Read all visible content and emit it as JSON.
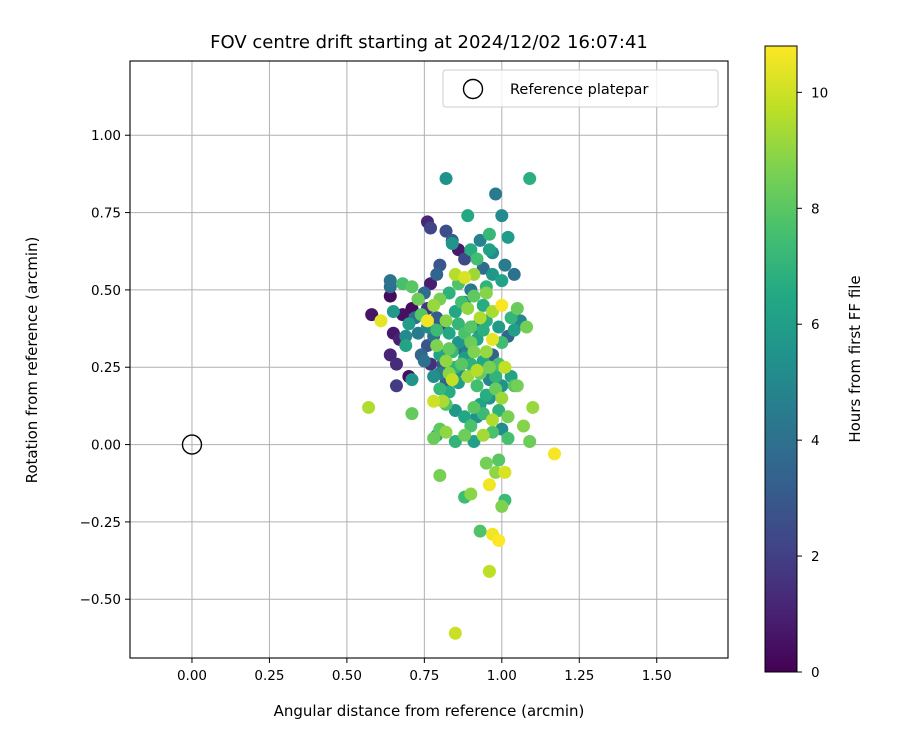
{
  "chart_data": {
    "type": "scatter",
    "title": "FOV centre drift starting at 2024/12/02 16:07:41",
    "xlabel": "Angular distance from reference (arcmin)",
    "ylabel": "Rotation from reference (arcmin)",
    "xlim": [
      -0.2,
      1.73
    ],
    "ylim": [
      -0.69,
      1.24
    ],
    "xticks": [
      0.0,
      0.25,
      0.5,
      0.75,
      1.0,
      1.25,
      1.5
    ],
    "xtick_labels": [
      "0.00",
      "0.25",
      "0.50",
      "0.75",
      "1.00",
      "1.25",
      "1.50"
    ],
    "yticks": [
      -0.5,
      -0.25,
      0.0,
      0.25,
      0.5,
      0.75,
      1.0
    ],
    "ytick_labels": [
      "−0.50",
      "−0.25",
      "0.00",
      "0.25",
      "0.50",
      "0.75",
      "1.00"
    ],
    "grid": true,
    "legend": {
      "placement": "top-right",
      "entries": [
        {
          "label": "Reference platepar",
          "marker": "open-circle"
        }
      ]
    },
    "reference_point": {
      "x": 0.0,
      "y": 0.0
    },
    "colorbar": {
      "label": "Hours from first FF file",
      "range": [
        0,
        10.8
      ],
      "ticks": [
        0,
        2,
        4,
        6,
        8,
        10
      ],
      "tick_labels": [
        "0",
        "2",
        "4",
        "6",
        "8",
        "10"
      ],
      "colormap": "viridis"
    },
    "points": [
      [
        0.64,
        0.48,
        0.3
      ],
      [
        0.58,
        0.42,
        0.6
      ],
      [
        0.65,
        0.36,
        0.7
      ],
      [
        0.67,
        0.34,
        1.0
      ],
      [
        0.64,
        0.29,
        1.1
      ],
      [
        0.66,
        0.26,
        1.4
      ],
      [
        0.7,
        0.22,
        0.4
      ],
      [
        0.66,
        0.19,
        1.9
      ],
      [
        0.68,
        0.42,
        0.5
      ],
      [
        0.71,
        0.44,
        0.3
      ],
      [
        0.76,
        0.72,
        1.2
      ],
      [
        0.77,
        0.7,
        2.2
      ],
      [
        0.82,
        0.69,
        2.6
      ],
      [
        0.84,
        0.66,
        3.2
      ],
      [
        0.86,
        0.63,
        0.8
      ],
      [
        0.88,
        0.6,
        2.4
      ],
      [
        0.8,
        0.58,
        2.9
      ],
      [
        0.79,
        0.55,
        3.5
      ],
      [
        0.77,
        0.52,
        0.9
      ],
      [
        0.75,
        0.49,
        3.8
      ],
      [
        0.73,
        0.47,
        2.5
      ],
      [
        0.76,
        0.44,
        1.7
      ],
      [
        0.79,
        0.41,
        3.1
      ],
      [
        0.81,
        0.38,
        2.0
      ],
      [
        0.78,
        0.35,
        4.2
      ],
      [
        0.76,
        0.32,
        2.8
      ],
      [
        0.74,
        0.29,
        3.6
      ],
      [
        0.77,
        0.26,
        1.5
      ],
      [
        0.8,
        0.23,
        4.6
      ],
      [
        0.82,
        0.2,
        3.3
      ],
      [
        0.64,
        0.53,
        4.1
      ],
      [
        0.64,
        0.51,
        3.9
      ],
      [
        0.65,
        0.43,
        5.8
      ],
      [
        0.69,
        0.35,
        5.1
      ],
      [
        0.69,
        0.32,
        6.3
      ],
      [
        0.71,
        0.21,
        5.5
      ],
      [
        0.68,
        0.52,
        7.6
      ],
      [
        0.71,
        0.51,
        8.0
      ],
      [
        0.73,
        0.47,
        8.4
      ],
      [
        0.74,
        0.42,
        7.9
      ],
      [
        0.98,
        0.81,
        4.4
      ],
      [
        1.0,
        0.74,
        5.1
      ],
      [
        0.89,
        0.74,
        6.5
      ],
      [
        0.82,
        0.86,
        5.4
      ],
      [
        1.09,
        0.86,
        6.8
      ],
      [
        1.02,
        0.67,
        5.9
      ],
      [
        0.96,
        0.68,
        7.2
      ],
      [
        0.93,
        0.66,
        4.8
      ],
      [
        0.96,
        0.63,
        6.1
      ],
      [
        0.97,
        0.62,
        5.2
      ],
      [
        0.9,
        0.63,
        6.7
      ],
      [
        0.84,
        0.65,
        5.6
      ],
      [
        0.92,
        0.6,
        7.5
      ],
      [
        0.94,
        0.57,
        3.7
      ],
      [
        0.97,
        0.55,
        5.7
      ],
      [
        1.01,
        0.58,
        4.5
      ],
      [
        1.04,
        0.55,
        4.0
      ],
      [
        1.0,
        0.53,
        6.2
      ],
      [
        0.95,
        0.51,
        7.0
      ],
      [
        0.9,
        0.5,
        4.3
      ],
      [
        0.88,
        0.54,
        10.2
      ],
      [
        0.85,
        0.55,
        9.6
      ],
      [
        0.86,
        0.52,
        7.8
      ],
      [
        0.83,
        0.49,
        6.9
      ],
      [
        0.8,
        0.47,
        8.6
      ],
      [
        0.78,
        0.45,
        9.1
      ],
      [
        0.76,
        0.4,
        10.6
      ],
      [
        0.79,
        0.37,
        7.3
      ],
      [
        0.82,
        0.4,
        8.8
      ],
      [
        0.85,
        0.43,
        6.4
      ],
      [
        0.88,
        0.46,
        5.3
      ],
      [
        0.91,
        0.48,
        8.1
      ],
      [
        0.94,
        0.45,
        6.6
      ],
      [
        0.97,
        0.43,
        9.4
      ],
      [
        1.0,
        0.45,
        10.7
      ],
      [
        1.03,
        0.41,
        7.1
      ],
      [
        1.05,
        0.44,
        8.3
      ],
      [
        1.06,
        0.4,
        5.0
      ],
      [
        1.04,
        0.37,
        6.0
      ],
      [
        1.08,
        0.38,
        8.5
      ],
      [
        1.02,
        0.35,
        3.6
      ],
      [
        1.0,
        0.33,
        7.4
      ],
      [
        0.97,
        0.34,
        10.4
      ],
      [
        0.94,
        0.37,
        6.8
      ],
      [
        0.91,
        0.38,
        4.7
      ],
      [
        0.88,
        0.36,
        7.7
      ],
      [
        0.86,
        0.33,
        5.6
      ],
      [
        0.83,
        0.31,
        8.2
      ],
      [
        0.8,
        0.29,
        6.3
      ],
      [
        0.82,
        0.27,
        9.0
      ],
      [
        0.85,
        0.25,
        7.0
      ],
      [
        0.88,
        0.28,
        5.9
      ],
      [
        0.91,
        0.3,
        8.7
      ],
      [
        0.94,
        0.27,
        6.5
      ],
      [
        0.97,
        0.29,
        3.4
      ],
      [
        0.99,
        0.26,
        7.6
      ],
      [
        1.01,
        0.25,
        9.8
      ],
      [
        1.03,
        0.22,
        6.2
      ],
      [
        1.0,
        0.19,
        5.4
      ],
      [
        1.04,
        0.19,
        7.9
      ],
      [
        0.98,
        0.18,
        8.3
      ],
      [
        0.95,
        0.16,
        6.7
      ],
      [
        0.92,
        0.19,
        7.5
      ],
      [
        0.89,
        0.22,
        9.2
      ],
      [
        0.86,
        0.2,
        6.0
      ],
      [
        0.83,
        0.23,
        8.9
      ],
      [
        0.8,
        0.18,
        7.2
      ],
      [
        0.78,
        0.14,
        10.0
      ],
      [
        0.82,
        0.13,
        7.8
      ],
      [
        0.85,
        0.11,
        5.7
      ],
      [
        0.88,
        0.09,
        6.4
      ],
      [
        0.91,
        0.12,
        8.0
      ],
      [
        0.94,
        0.1,
        7.3
      ],
      [
        0.97,
        0.08,
        9.5
      ],
      [
        0.99,
        0.11,
        6.9
      ],
      [
        1.02,
        0.09,
        8.6
      ],
      [
        1.0,
        0.05,
        5.2
      ],
      [
        0.97,
        0.04,
        7.7
      ],
      [
        0.94,
        0.03,
        9.3
      ],
      [
        0.91,
        0.01,
        6.1
      ],
      [
        0.88,
        0.03,
        8.4
      ],
      [
        0.85,
        0.01,
        7.0
      ],
      [
        0.82,
        0.04,
        9.0
      ],
      [
        0.79,
        0.03,
        6.6
      ],
      [
        0.8,
        0.05,
        8.1
      ],
      [
        0.92,
        0.09,
        5.5
      ],
      [
        0.96,
        0.21,
        4.9
      ],
      [
        1.05,
        0.19,
        8.5
      ],
      [
        1.07,
        0.06,
        8.8
      ],
      [
        1.1,
        0.12,
        9.1
      ],
      [
        1.09,
        0.01,
        8.4
      ],
      [
        1.02,
        0.02,
        7.6
      ],
      [
        1.17,
        -0.03,
        10.7
      ],
      [
        0.99,
        -0.05,
        8.0
      ],
      [
        1.01,
        -0.09,
        10.2
      ],
      [
        0.98,
        -0.09,
        9.0
      ],
      [
        0.95,
        -0.06,
        8.5
      ],
      [
        0.96,
        -0.13,
        10.6
      ],
      [
        1.01,
        -0.18,
        7.3
      ],
      [
        1.0,
        -0.2,
        8.7
      ],
      [
        0.9,
        -0.16,
        8.9
      ],
      [
        0.88,
        -0.17,
        7.4
      ],
      [
        0.93,
        -0.28,
        7.8
      ],
      [
        0.97,
        -0.29,
        10.6
      ],
      [
        0.99,
        -0.31,
        10.8
      ],
      [
        0.96,
        -0.41,
        9.7
      ],
      [
        0.85,
        -0.61,
        9.9
      ],
      [
        0.57,
        0.12,
        9.5
      ],
      [
        0.61,
        0.4,
        10.4
      ],
      [
        0.71,
        0.1,
        8.2
      ],
      [
        0.8,
        -0.1,
        8.6
      ],
      [
        0.78,
        0.02,
        8.3
      ],
      [
        0.81,
        0.14,
        9.4
      ],
      [
        0.92,
        0.24,
        9.6
      ],
      [
        0.95,
        0.3,
        9.1
      ],
      [
        1.0,
        0.15,
        9.2
      ],
      [
        0.87,
        0.26,
        8.0
      ],
      [
        0.9,
        0.33,
        8.4
      ],
      [
        0.79,
        0.32,
        8.7
      ],
      [
        0.84,
        0.21,
        9.8
      ],
      [
        0.93,
        0.41,
        9.5
      ],
      [
        0.89,
        0.44,
        9.0
      ],
      [
        0.86,
        0.39,
        7.1
      ],
      [
        0.83,
        0.36,
        6.5
      ],
      [
        0.9,
        0.38,
        7.9
      ],
      [
        0.95,
        0.49,
        8.8
      ],
      [
        0.91,
        0.55,
        9.2
      ],
      [
        0.87,
        0.46,
        7.5
      ],
      [
        0.99,
        0.38,
        5.8
      ],
      [
        0.95,
        0.4,
        6.8
      ],
      [
        0.92,
        0.34,
        6.3
      ],
      [
        0.89,
        0.3,
        4.6
      ],
      [
        0.86,
        0.24,
        5.1
      ],
      [
        0.83,
        0.17,
        6.6
      ],
      [
        0.76,
        0.38,
        5.0
      ],
      [
        0.73,
        0.36,
        4.4
      ],
      [
        0.7,
        0.39,
        6.0
      ],
      [
        0.72,
        0.41,
        4.1
      ],
      [
        0.75,
        0.27,
        4.0
      ],
      [
        0.78,
        0.22,
        5.3
      ],
      [
        0.81,
        0.26,
        3.0
      ],
      [
        0.84,
        0.3,
        7.2
      ],
      [
        0.87,
        0.31,
        3.8
      ],
      [
        0.9,
        0.26,
        6.9
      ],
      [
        0.93,
        0.23,
        8.2
      ],
      [
        0.96,
        0.25,
        8.6
      ],
      [
        0.98,
        0.22,
        7.0
      ],
      [
        0.96,
        0.15,
        5.6
      ],
      [
        0.93,
        0.13,
        6.2
      ],
      [
        0.9,
        0.06,
        7.7
      ]
    ]
  }
}
